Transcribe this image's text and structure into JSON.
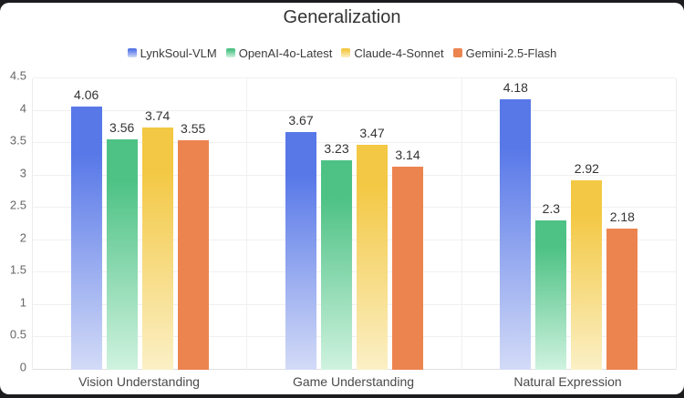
{
  "window": {
    "background_color": "#1c1c1e",
    "card_color": "#ffffff"
  },
  "chart_data": {
    "type": "bar",
    "title": "Generalization",
    "categories": [
      "Vision Understanding",
      "Game Understanding",
      "Natural Expression"
    ],
    "series": [
      {
        "name": "LynkSoul-VLM",
        "color": "#5878e8",
        "color_light": "#d3dbf7",
        "gradient": true,
        "values": [
          4.06,
          3.67,
          4.18
        ]
      },
      {
        "name": "OpenAI-4o-Latest",
        "color": "#4ec285",
        "color_light": "#cff2df",
        "gradient": true,
        "values": [
          3.56,
          3.23,
          2.3
        ]
      },
      {
        "name": "Claude-4-Sonnet",
        "color": "#f3c844",
        "color_light": "#fbf0c6",
        "gradient": true,
        "values": [
          3.74,
          3.47,
          2.92
        ]
      },
      {
        "name": "Gemini-2.5-Flash",
        "color": "#ec8450",
        "color_light": "#ec8450",
        "gradient": false,
        "values": [
          3.55,
          3.14,
          2.18
        ]
      }
    ],
    "value_labels": [
      [
        "4.06",
        "3.56",
        "3.74",
        "3.55"
      ],
      [
        "3.67",
        "3.23",
        "3.47",
        "3.14"
      ],
      [
        "4.18",
        "2.3",
        "2.92",
        "2.18"
      ]
    ],
    "ylim": [
      0,
      4.5
    ],
    "ytick_step": 0.5,
    "ytick_labels": [
      "0",
      "0.5",
      "1",
      "1.5",
      "2",
      "2.5",
      "3",
      "3.5",
      "4",
      "4.5"
    ],
    "grid": true,
    "legend_position": "top",
    "colors": {
      "title_text": "#333333",
      "legend_text": "#3a3a3a",
      "ytick_text": "#666666",
      "xtick_text": "#4a4a4a",
      "value_text": "#333333",
      "gridline": "#f0f0f0",
      "axis_line": "#e0e0e0"
    }
  }
}
